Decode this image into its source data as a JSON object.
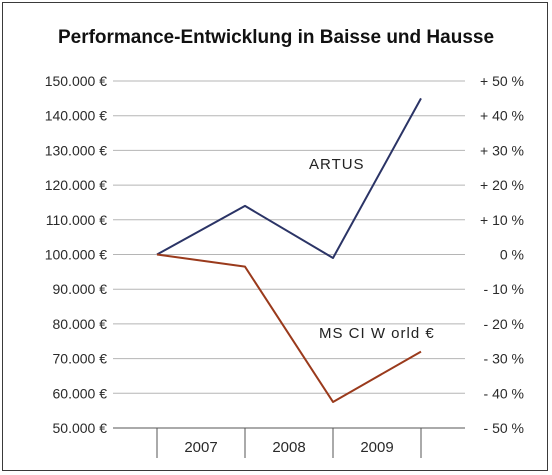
{
  "chart_data": {
    "type": "line",
    "title": "Performance-Entwicklung in Baisse und Hausse",
    "left_axis": {
      "ylim": [
        50000,
        150000
      ],
      "ticks": [
        150000,
        140000,
        130000,
        120000,
        110000,
        100000,
        90000,
        80000,
        70000,
        60000,
        50000
      ],
      "tick_labels": [
        "150.000 €",
        "140.000 €",
        "130.000 €",
        "120.000 €",
        "110.000 €",
        "100.000 €",
        "90.000 €",
        "80.000 €",
        "70.000 €",
        "60.000 €",
        "50.000 €"
      ]
    },
    "right_axis": {
      "ylim": [
        -50,
        50
      ],
      "tick_labels": [
        "+ 50 %",
        "+ 40 %",
        "+ 30 %",
        "+ 20 %",
        "+ 10 %",
        "0 %",
        "- 10 %",
        "- 20 %",
        "- 30 %",
        "- 40 %",
        "- 50 %"
      ]
    },
    "x_categories": [
      "2007",
      "2008",
      "2009"
    ],
    "x": [
      2006.5,
      2007.5,
      2008.5,
      2009.5
    ],
    "series": [
      {
        "name": "ARTUS",
        "color": "#2b3466",
        "values": [
          100000,
          114000,
          99000,
          145000
        ]
      },
      {
        "name": "MS CI W orld €",
        "color": "#9a3a1c",
        "values": [
          100000,
          96500,
          57500,
          72000
        ]
      }
    ],
    "grid": true,
    "legend": "inline-labels"
  }
}
